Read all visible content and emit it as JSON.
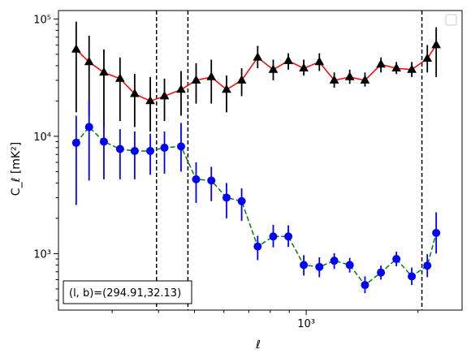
{
  "chart_data": {
    "type": "scatter",
    "x_scale": "log",
    "y_scale": "log",
    "xlabel": "ℓ",
    "ylabel": "C_ℓ  [mK²]",
    "xlim": [
      215,
      2630
    ],
    "ylim": [
      330,
      118000
    ],
    "xticks": [
      {
        "value": 1000,
        "label": "10³"
      }
    ],
    "yticks": [
      {
        "value": 1000,
        "label": "10³"
      },
      {
        "value": 10000,
        "label": "10⁴"
      },
      {
        "value": 100000,
        "label": "10⁵"
      }
    ],
    "grid": false,
    "legend": "top-right (empty)",
    "annotation": "(l, b)=(294.91,32.13)",
    "vlines": [
      395,
      480,
      2050
    ],
    "vline_color": "#000000",
    "series": [
      {
        "marker": "triangle",
        "color": "#000000",
        "line_color": "#ff0000",
        "line_style": "solid",
        "points": [
          {
            "x": 240,
            "y": 55000,
            "lo": 16000,
            "hi": 95000
          },
          {
            "x": 260,
            "y": 43000,
            "lo": 15000,
            "hi": 72000
          },
          {
            "x": 285,
            "y": 35000,
            "lo": 12000,
            "hi": 55000
          },
          {
            "x": 315,
            "y": 31000,
            "lo": 13500,
            "hi": 47000
          },
          {
            "x": 345,
            "y": 23000,
            "lo": 12000,
            "hi": 34000
          },
          {
            "x": 380,
            "y": 20000,
            "lo": 11000,
            "hi": 32000
          },
          {
            "x": 415,
            "y": 22000,
            "lo": 13500,
            "hi": 31000
          },
          {
            "x": 460,
            "y": 25000,
            "lo": 15000,
            "hi": 36000
          },
          {
            "x": 505,
            "y": 30000,
            "lo": 19000,
            "hi": 42000
          },
          {
            "x": 555,
            "y": 32000,
            "lo": 19000,
            "hi": 45000
          },
          {
            "x": 610,
            "y": 25000,
            "lo": 16000,
            "hi": 33000
          },
          {
            "x": 670,
            "y": 30000,
            "lo": 22000,
            "hi": 38000
          },
          {
            "x": 740,
            "y": 47000,
            "lo": 38000,
            "hi": 59000
          },
          {
            "x": 815,
            "y": 37000,
            "lo": 30000,
            "hi": 45000
          },
          {
            "x": 895,
            "y": 44000,
            "lo": 37000,
            "hi": 51000
          },
          {
            "x": 985,
            "y": 38000,
            "lo": 33000,
            "hi": 45000
          },
          {
            "x": 1085,
            "y": 43000,
            "lo": 36000,
            "hi": 51000
          },
          {
            "x": 1190,
            "y": 30000,
            "lo": 26000,
            "hi": 35000
          },
          {
            "x": 1310,
            "y": 32000,
            "lo": 28000,
            "hi": 37000
          },
          {
            "x": 1440,
            "y": 30000,
            "lo": 26500,
            "hi": 35000
          },
          {
            "x": 1590,
            "y": 41000,
            "lo": 35000,
            "hi": 47000
          },
          {
            "x": 1750,
            "y": 38000,
            "lo": 34000,
            "hi": 43000
          },
          {
            "x": 1925,
            "y": 37000,
            "lo": 32000,
            "hi": 43000
          },
          {
            "x": 2120,
            "y": 46000,
            "lo": 35000,
            "hi": 60000
          },
          {
            "x": 2240,
            "y": 60000,
            "lo": 32000,
            "hi": 85000
          }
        ]
      },
      {
        "marker": "circle",
        "color": "#0000ff",
        "line_color": "#008000",
        "line_style": "dashed",
        "points": [
          {
            "x": 240,
            "y": 8800,
            "lo": 2600,
            "hi": 15000
          },
          {
            "x": 260,
            "y": 12000,
            "lo": 4200,
            "hi": 20000
          },
          {
            "x": 285,
            "y": 9000,
            "lo": 4300,
            "hi": 14000
          },
          {
            "x": 315,
            "y": 7800,
            "lo": 4300,
            "hi": 11500
          },
          {
            "x": 345,
            "y": 7500,
            "lo": 4300,
            "hi": 11000
          },
          {
            "x": 380,
            "y": 7500,
            "lo": 4700,
            "hi": 10500
          },
          {
            "x": 415,
            "y": 8000,
            "lo": 4800,
            "hi": 11000
          },
          {
            "x": 460,
            "y": 8200,
            "lo": 5000,
            "hi": 13000
          },
          {
            "x": 505,
            "y": 4300,
            "lo": 2700,
            "hi": 6000
          },
          {
            "x": 555,
            "y": 4200,
            "lo": 2800,
            "hi": 5500
          },
          {
            "x": 610,
            "y": 3000,
            "lo": 2000,
            "hi": 4000
          },
          {
            "x": 670,
            "y": 2800,
            "lo": 1900,
            "hi": 3600
          },
          {
            "x": 740,
            "y": 1150,
            "lo": 880,
            "hi": 1420
          },
          {
            "x": 815,
            "y": 1400,
            "lo": 1130,
            "hi": 1760
          },
          {
            "x": 895,
            "y": 1400,
            "lo": 1140,
            "hi": 1740
          },
          {
            "x": 985,
            "y": 800,
            "lo": 650,
            "hi": 970
          },
          {
            "x": 1085,
            "y": 770,
            "lo": 630,
            "hi": 930
          },
          {
            "x": 1190,
            "y": 870,
            "lo": 740,
            "hi": 1010
          },
          {
            "x": 1310,
            "y": 800,
            "lo": 690,
            "hi": 920
          },
          {
            "x": 1440,
            "y": 540,
            "lo": 460,
            "hi": 640
          },
          {
            "x": 1590,
            "y": 690,
            "lo": 600,
            "hi": 790
          },
          {
            "x": 1750,
            "y": 900,
            "lo": 780,
            "hi": 1040
          },
          {
            "x": 1925,
            "y": 640,
            "lo": 540,
            "hi": 760
          },
          {
            "x": 2120,
            "y": 790,
            "lo": 630,
            "hi": 990
          },
          {
            "x": 2240,
            "y": 1500,
            "lo": 1000,
            "hi": 2250
          }
        ]
      }
    ]
  }
}
